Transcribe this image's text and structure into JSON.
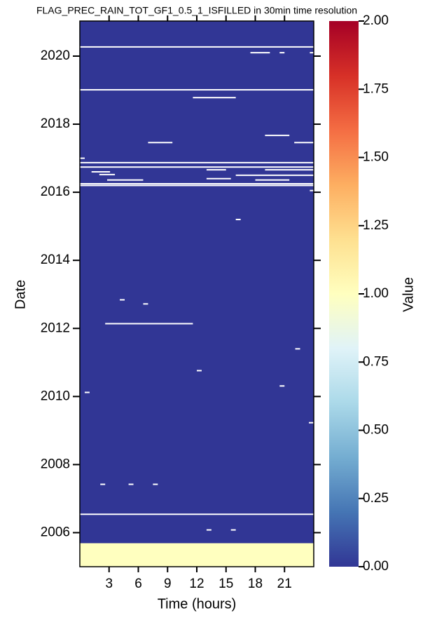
{
  "chart_data": {
    "type": "heatmap",
    "title": "FLAG_PREC_RAIN_TOT_GF1_0.5_1_ISFILLED in 30min time resolution",
    "xlabel": "Time (hours)",
    "ylabel": "Date",
    "xlim": [
      0,
      24
    ],
    "xticks": [
      3,
      6,
      9,
      12,
      15,
      18,
      21
    ],
    "ylim": [
      2005.0,
      2021.03
    ],
    "yticks": [
      2006,
      2008,
      2010,
      2012,
      2014,
      2016,
      2018,
      2020
    ],
    "blocks": [
      {
        "hours": [
          0,
          24
        ],
        "dates": [
          2005.0,
          2005.69
        ],
        "value": 1
      },
      {
        "hours": [
          0,
          24
        ],
        "dates": [
          2005.69,
          2021.03
        ],
        "value": 0
      }
    ],
    "missing": [
      {
        "hours": [
          0,
          24
        ],
        "date": 2020.27
      },
      {
        "hours": [
          0,
          24
        ],
        "date": 2019.01
      },
      {
        "hours": [
          0,
          24
        ],
        "date": 2016.87
      },
      {
        "hours": [
          0,
          24
        ],
        "date": 2016.74
      },
      {
        "hours": [
          0,
          24
        ],
        "date": 2016.25
      },
      {
        "hours": [
          0,
          24
        ],
        "date": 2016.2
      },
      {
        "hours": [
          0,
          24
        ],
        "date": 2006.54
      },
      {
        "hours": [
          17.5,
          19.5
        ],
        "date": 2020.1
      },
      {
        "hours": [
          20.5,
          21
        ],
        "date": 2020.1
      },
      {
        "hours": [
          23.6,
          24
        ],
        "date": 2020.1
      },
      {
        "hours": [
          11.6,
          16
        ],
        "date": 2018.78
      },
      {
        "hours": [
          19,
          21.5
        ],
        "date": 2017.67
      },
      {
        "hours": [
          7,
          9.5
        ],
        "date": 2017.46
      },
      {
        "hours": [
          22,
          24
        ],
        "date": 2017.46
      },
      {
        "hours": [
          0,
          0.5
        ],
        "date": 2017.0
      },
      {
        "hours": [
          13,
          15
        ],
        "date": 2016.66
      },
      {
        "hours": [
          19,
          24
        ],
        "date": 2016.66
      },
      {
        "hours": [
          1.2,
          3.1
        ],
        "date": 2016.6
      },
      {
        "hours": [
          2,
          3.6
        ],
        "date": 2016.52
      },
      {
        "hours": [
          16,
          24
        ],
        "date": 2016.5
      },
      {
        "hours": [
          13,
          15.5
        ],
        "date": 2016.4
      },
      {
        "hours": [
          2.8,
          6.5
        ],
        "date": 2016.36
      },
      {
        "hours": [
          18,
          21.5
        ],
        "date": 2016.36
      },
      {
        "hours": [
          23.6,
          24
        ],
        "date": 2016.05
      },
      {
        "hours": [
          16,
          16.5
        ],
        "date": 2015.2
      },
      {
        "hours": [
          4.1,
          4.6
        ],
        "date": 2012.84
      },
      {
        "hours": [
          6.5,
          7
        ],
        "date": 2012.72
      },
      {
        "hours": [
          2.6,
          11.6
        ],
        "date": 2012.14
      },
      {
        "hours": [
          22.1,
          22.6
        ],
        "date": 2011.4
      },
      {
        "hours": [
          12,
          12.5
        ],
        "date": 2010.76
      },
      {
        "hours": [
          20.5,
          21
        ],
        "date": 2010.31
      },
      {
        "hours": [
          0.5,
          1
        ],
        "date": 2010.12
      },
      {
        "hours": [
          23.5,
          24
        ],
        "date": 2009.23
      },
      {
        "hours": [
          2.1,
          2.6
        ],
        "date": 2007.42
      },
      {
        "hours": [
          5,
          5.5
        ],
        "date": 2007.42
      },
      {
        "hours": [
          7.5,
          8
        ],
        "date": 2007.42
      },
      {
        "hours": [
          13,
          13.5
        ],
        "date": 2006.08
      },
      {
        "hours": [
          15.5,
          16
        ],
        "date": 2006.08
      }
    ],
    "colorbar": {
      "label": "Value",
      "lim": [
        0,
        2
      ],
      "ticks": [
        {
          "value": 0,
          "label": "0.00"
        },
        {
          "value": 0.25,
          "label": "0.25"
        },
        {
          "value": 0.5,
          "label": "0.50"
        },
        {
          "value": 0.75,
          "label": "0.75"
        },
        {
          "value": 1,
          "label": "1.00"
        },
        {
          "value": 1.25,
          "label": "1.25"
        },
        {
          "value": 1.5,
          "label": "1.50"
        },
        {
          "value": 1.75,
          "label": "1.75"
        },
        {
          "value": 2,
          "label": "2.00"
        }
      ],
      "colormap": [
        "#313695",
        "#4575b4",
        "#74add1",
        "#abd9e9",
        "#e0f3f8",
        "#ffffbf",
        "#fee090",
        "#fdae61",
        "#f46d43",
        "#d73027",
        "#a50026"
      ]
    }
  }
}
